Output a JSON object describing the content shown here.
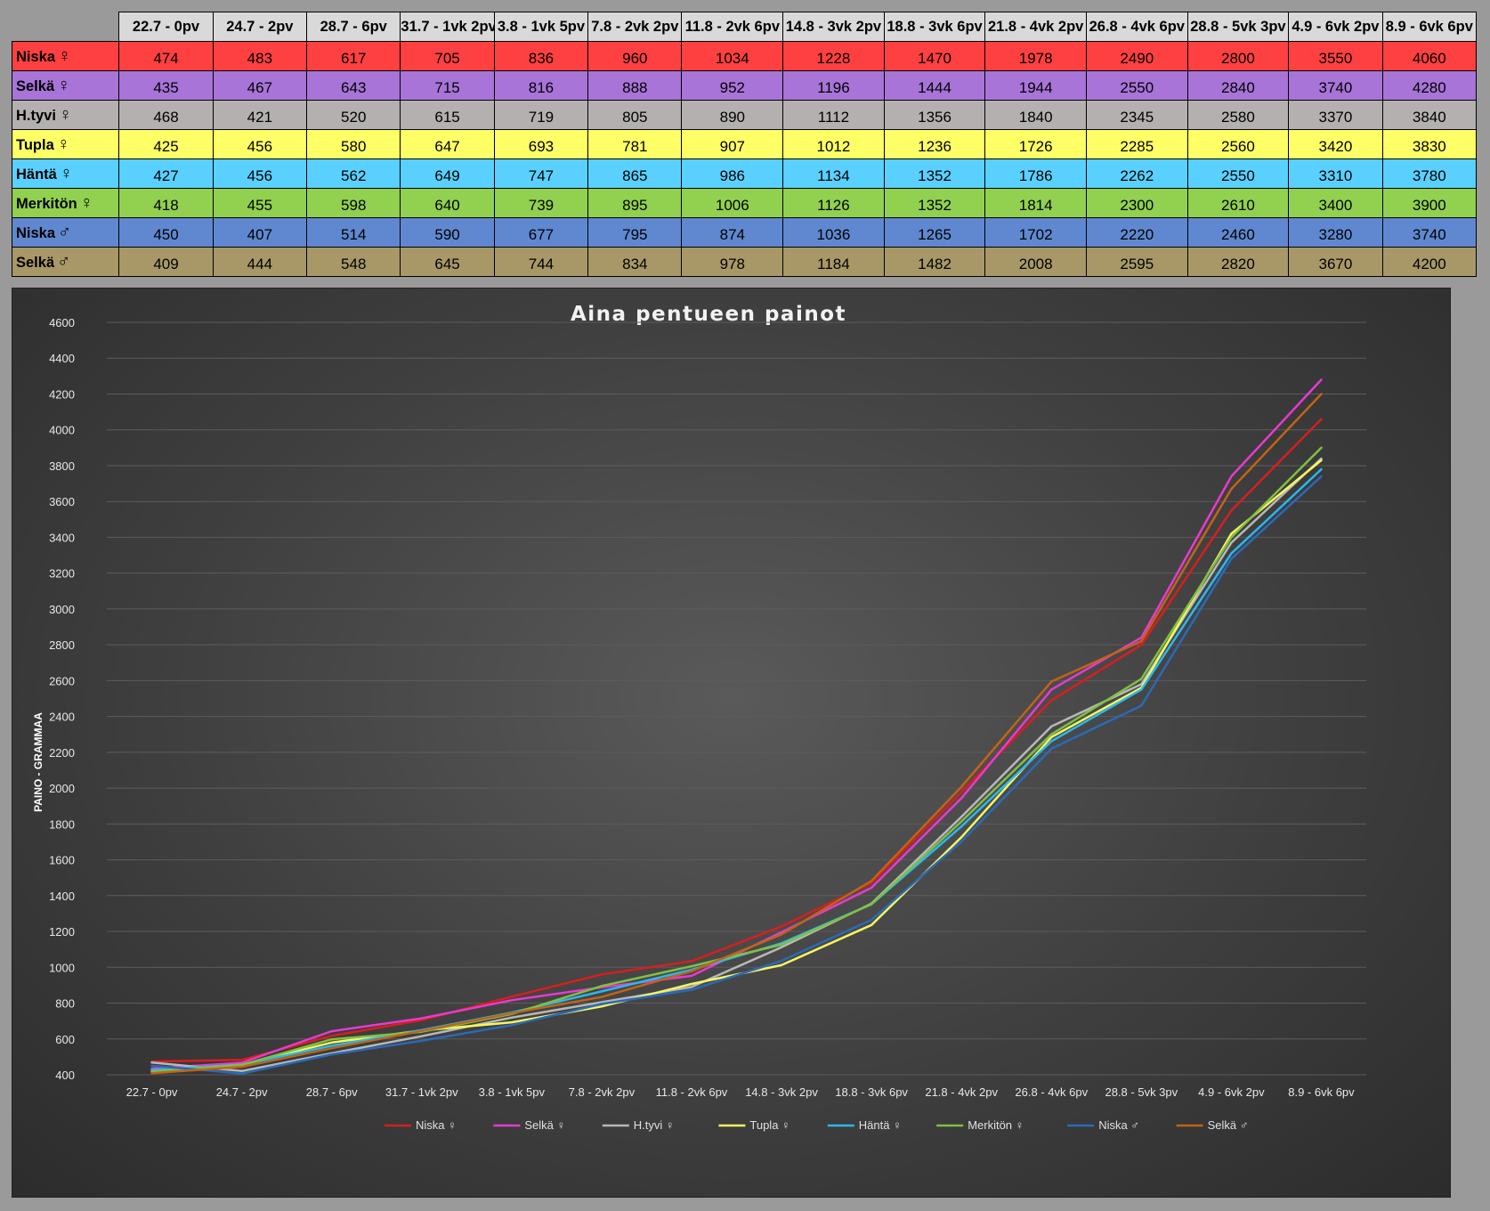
{
  "table": {
    "columns": [
      "22.7 - 0pv",
      "24.7 - 2pv",
      "28.7 - 6pv",
      "31.7 - 1vk 2pv",
      "3.8 - 1vk 5pv",
      "7.8 - 2vk 2pv",
      "11.8 - 2vk 6pv",
      "14.8 - 3vk 2pv",
      "18.8 - 3vk 6pv",
      "21.8 - 4vk 2pv",
      "26.8 - 4vk 6pv",
      "28.8 - 5vk 3pv",
      "4.9 - 6vk 2pv",
      "8.9 - 6vk 6pv"
    ],
    "rows": [
      {
        "name": "Niska",
        "symbol": "♀",
        "bg": "#ff4040"
      },
      {
        "name": "Selkä",
        "symbol": "♀",
        "bg": "#a874d8"
      },
      {
        "name": "H.tyvi",
        "symbol": "♀",
        "bg": "#b4b0b0"
      },
      {
        "name": "Tupla",
        "symbol": "♀",
        "bg": "#ffff66"
      },
      {
        "name": "Häntä",
        "symbol": "♀",
        "bg": "#5ad0ff"
      },
      {
        "name": "Merkitön",
        "symbol": "♀",
        "bg": "#92d050"
      },
      {
        "name": "Niska",
        "symbol": "♂",
        "bg": "#6088d0"
      },
      {
        "name": "Selkä",
        "symbol": "♂",
        "bg": "#a89868"
      }
    ]
  },
  "chart_data": {
    "type": "line",
    "title": "Aina pentueen painot",
    "xlabel": "",
    "ylabel": "PAINO - GRAMMAA",
    "ylim": [
      400,
      4600
    ],
    "ytick_step": 200,
    "grid": true,
    "legend_position": "bottom",
    "categories": [
      "22.7 - 0pv",
      "24.7 - 2pv",
      "28.7 - 6pv",
      "31.7 - 1vk 2pv",
      "3.8 - 1vk 5pv",
      "7.8 - 2vk 2pv",
      "11.8 - 2vk 6pv",
      "14.8 - 3vk 2pv",
      "18.8 - 3vk 6pv",
      "21.8 - 4vk 2pv",
      "26.8 - 4vk 6pv",
      "28.8 - 5vk 3pv",
      "4.9 - 6vk 2pv",
      "8.9 - 6vk 6pv"
    ],
    "series": [
      {
        "name": "Niska ♀",
        "color": "#d81e1e",
        "values": [
          474,
          483,
          617,
          705,
          836,
          960,
          1034,
          1228,
          1470,
          1978,
          2490,
          2800,
          3550,
          4060
        ]
      },
      {
        "name": "Selkä ♀",
        "color": "#e83ad0",
        "values": [
          435,
          467,
          643,
          715,
          816,
          888,
          952,
          1196,
          1444,
          1944,
          2550,
          2840,
          3740,
          4280
        ]
      },
      {
        "name": "H.tyvi ♀",
        "color": "#b8b8b8",
        "values": [
          468,
          421,
          520,
          615,
          719,
          805,
          890,
          1112,
          1356,
          1840,
          2345,
          2580,
          3370,
          3840
        ]
      },
      {
        "name": "Tupla ♀",
        "color": "#f5f560",
        "values": [
          425,
          456,
          580,
          647,
          693,
          781,
          907,
          1012,
          1236,
          1726,
          2285,
          2560,
          3420,
          3830
        ]
      },
      {
        "name": "Häntä ♀",
        "color": "#2ab8f0",
        "values": [
          427,
          456,
          562,
          649,
          747,
          865,
          986,
          1134,
          1352,
          1786,
          2262,
          2550,
          3310,
          3780
        ]
      },
      {
        "name": "Merkitön ♀",
        "color": "#80c040",
        "values": [
          418,
          455,
          598,
          640,
          739,
          895,
          1006,
          1126,
          1352,
          1814,
          2300,
          2610,
          3400,
          3900
        ]
      },
      {
        "name": "Niska ♂",
        "color": "#2a6ab8",
        "values": [
          450,
          407,
          514,
          590,
          677,
          795,
          874,
          1036,
          1265,
          1702,
          2220,
          2460,
          3280,
          3740
        ]
      },
      {
        "name": "Selkä ♂",
        "color": "#c06418",
        "values": [
          409,
          444,
          548,
          645,
          744,
          834,
          978,
          1184,
          1482,
          2008,
          2595,
          2820,
          3670,
          4200
        ]
      }
    ]
  }
}
